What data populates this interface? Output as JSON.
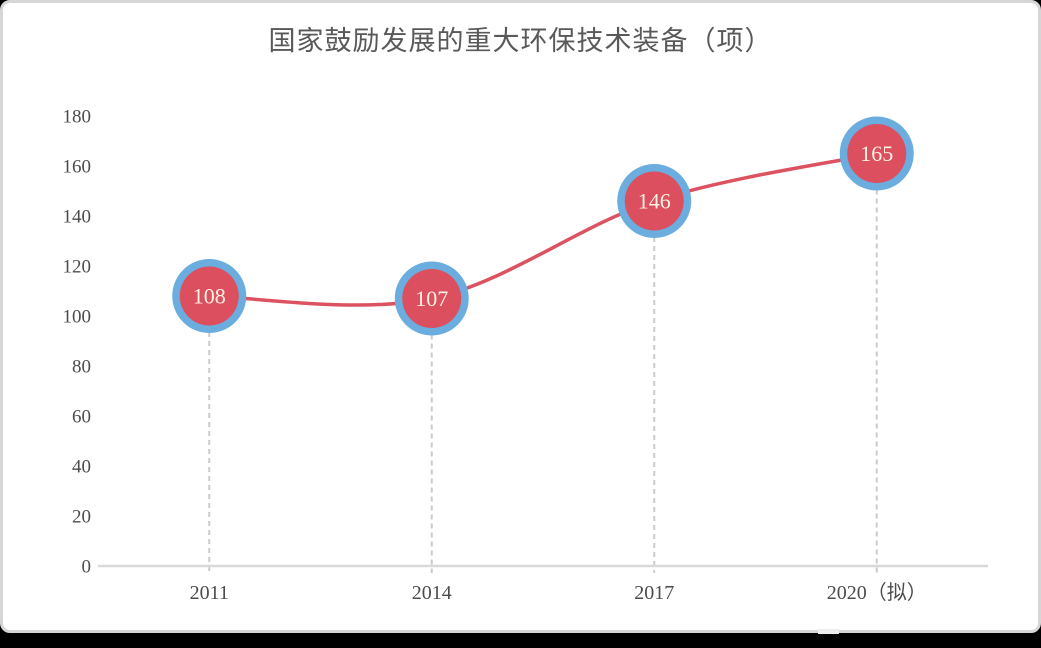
{
  "chart_data": {
    "type": "line",
    "title": "国家鼓励发展的重大环保技术装备（项）",
    "categories": [
      "2011",
      "2014",
      "2017",
      "2020（拟）"
    ],
    "values": [
      108,
      107,
      146,
      165
    ],
    "xlabel": "",
    "ylabel": "",
    "ylim": [
      0,
      180
    ],
    "ytick_step": 20,
    "grid": "off",
    "legend": "none",
    "marker_style": "ringed-circle",
    "value_labels": [
      "108",
      "107",
      "146",
      "165"
    ],
    "colors": {
      "title": "#595959",
      "line": "#dc5261",
      "marker_fill": "#dc4f5f",
      "marker_ring": "#6badde",
      "value_label": "#fbf3e4",
      "axis_line": "#d9d9d9",
      "drop_line": "#cbcbcb",
      "tick_label": "#4c4c4c"
    }
  }
}
